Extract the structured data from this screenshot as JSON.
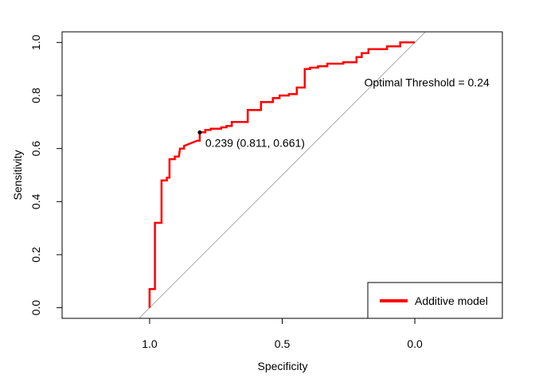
{
  "chart_data": {
    "type": "line",
    "xlabel": "Specificity",
    "ylabel": "Sensitivity",
    "xlim": [
      1.33,
      -0.33
    ],
    "ylim": [
      -0.04,
      1.04
    ],
    "x_ticks": [
      1.0,
      0.5,
      0.0
    ],
    "x_tick_labels": [
      "1.0",
      "0.5",
      "0.0"
    ],
    "y_ticks": [
      0.0,
      0.2,
      0.4,
      0.6,
      0.8,
      1.0
    ],
    "y_tick_labels": [
      "0.0",
      "0.2",
      "0.4",
      "0.6",
      "0.8",
      "1.0"
    ],
    "grid": false,
    "legend_position": "bottom-right",
    "series": [
      {
        "name": "Additive model",
        "color": "#ff0000",
        "points": [
          [
            1.0,
            0.0
          ],
          [
            1.0,
            0.07
          ],
          [
            0.98,
            0.07
          ],
          [
            0.98,
            0.32
          ],
          [
            0.955,
            0.32
          ],
          [
            0.955,
            0.48
          ],
          [
            0.935,
            0.48
          ],
          [
            0.935,
            0.49
          ],
          [
            0.925,
            0.49
          ],
          [
            0.925,
            0.56
          ],
          [
            0.905,
            0.56
          ],
          [
            0.905,
            0.57
          ],
          [
            0.89,
            0.57
          ],
          [
            0.885,
            0.6
          ],
          [
            0.87,
            0.6
          ],
          [
            0.87,
            0.61
          ],
          [
            0.845,
            0.62
          ],
          [
            0.82,
            0.63
          ],
          [
            0.811,
            0.63
          ],
          [
            0.811,
            0.661
          ],
          [
            0.79,
            0.661
          ],
          [
            0.79,
            0.67
          ],
          [
            0.77,
            0.67
          ],
          [
            0.77,
            0.675
          ],
          [
            0.73,
            0.675
          ],
          [
            0.73,
            0.68
          ],
          [
            0.71,
            0.68
          ],
          [
            0.71,
            0.685
          ],
          [
            0.69,
            0.685
          ],
          [
            0.69,
            0.7
          ],
          [
            0.63,
            0.7
          ],
          [
            0.63,
            0.745
          ],
          [
            0.58,
            0.745
          ],
          [
            0.58,
            0.775
          ],
          [
            0.535,
            0.775
          ],
          [
            0.535,
            0.79
          ],
          [
            0.51,
            0.79
          ],
          [
            0.51,
            0.8
          ],
          [
            0.475,
            0.8
          ],
          [
            0.475,
            0.805
          ],
          [
            0.445,
            0.805
          ],
          [
            0.445,
            0.83
          ],
          [
            0.415,
            0.83
          ],
          [
            0.415,
            0.9
          ],
          [
            0.395,
            0.9
          ],
          [
            0.395,
            0.905
          ],
          [
            0.365,
            0.905
          ],
          [
            0.365,
            0.91
          ],
          [
            0.33,
            0.91
          ],
          [
            0.33,
            0.92
          ],
          [
            0.27,
            0.92
          ],
          [
            0.27,
            0.925
          ],
          [
            0.22,
            0.925
          ],
          [
            0.22,
            0.945
          ],
          [
            0.2,
            0.945
          ],
          [
            0.2,
            0.96
          ],
          [
            0.175,
            0.96
          ],
          [
            0.175,
            0.975
          ],
          [
            0.105,
            0.975
          ],
          [
            0.105,
            0.985
          ],
          [
            0.055,
            0.985
          ],
          [
            0.055,
            1.0
          ],
          [
            0.0,
            1.0
          ]
        ]
      }
    ],
    "reference_line": {
      "from": [
        1.04,
        -0.04
      ],
      "to": [
        -0.04,
        1.04
      ],
      "color": "#aaaaaa"
    },
    "threshold_point": {
      "x": 0.811,
      "y": 0.661,
      "label": "0.239 (0.811, 0.661)"
    },
    "annotation": {
      "text": "Optimal Threshold = 0.24",
      "x": 0.27,
      "y": 0.85
    },
    "legend": {
      "entries": [
        {
          "label": "Additive model",
          "color": "#ff0000"
        }
      ]
    }
  }
}
